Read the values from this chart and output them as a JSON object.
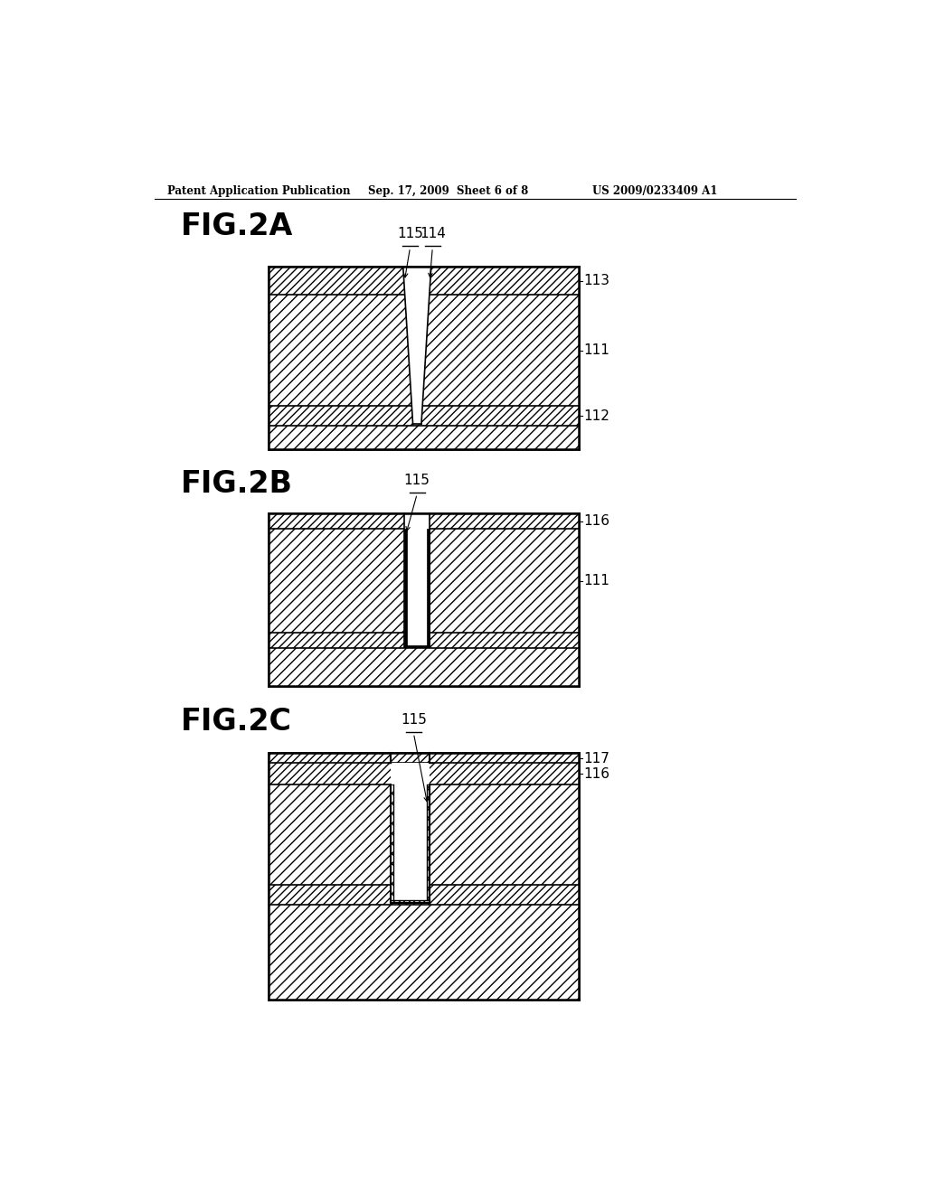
{
  "header_left": "Patent Application Publication",
  "header_mid": "Sep. 17, 2009  Sheet 6 of 8",
  "header_right": "US 2009/0233409 A1",
  "fig2a_label": "FIG.2A",
  "fig2b_label": "FIG.2B",
  "fig2c_label": "FIG.2C",
  "background": "#ffffff"
}
